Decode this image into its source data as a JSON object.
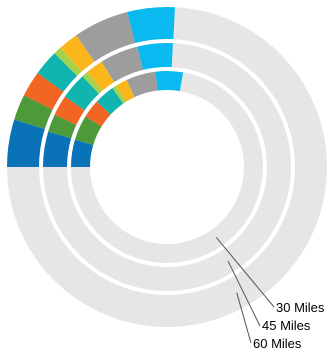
{
  "chart_data": {
    "type": "pie",
    "style": "multi-ring-donut",
    "start_angle_note": "segments run clockwise from 9 o'clock; the grey remainder fills the lower half",
    "colors": {
      "dark_blue": "#0a73b8",
      "green": "#4e9a3a",
      "orange": "#f06622",
      "teal": "#11b5b0",
      "light_green": "#a6d14b",
      "amber": "#fbb61c",
      "grey": "#9d9d9d",
      "sky_blue": "#0ab9ef",
      "remainder": "#e6e6e6"
    },
    "series": [
      {
        "name": "60 Miles",
        "slices": [
          {
            "color_key": "dark_blue",
            "value": 12
          },
          {
            "color_key": "green",
            "value": 6.5
          },
          {
            "color_key": "orange",
            "value": 6.5
          },
          {
            "color_key": "teal",
            "value": 6.5
          },
          {
            "color_key": "light_green",
            "value": 2
          },
          {
            "color_key": "amber",
            "value": 5
          },
          {
            "color_key": "grey",
            "value": 14
          },
          {
            "color_key": "sky_blue",
            "value": 12
          },
          {
            "color_key": "remainder",
            "value": 185.5
          }
        ]
      },
      {
        "name": "45 Miles",
        "slices": [
          {
            "color_key": "dark_blue",
            "value": 12
          },
          {
            "color_key": "green",
            "value": 6
          },
          {
            "color_key": "orange",
            "value": 7
          },
          {
            "color_key": "teal",
            "value": 9
          },
          {
            "color_key": "light_green",
            "value": 2
          },
          {
            "color_key": "amber",
            "value": 6
          },
          {
            "color_key": "grey",
            "value": 13
          },
          {
            "color_key": "sky_blue",
            "value": 12
          },
          {
            "color_key": "remainder",
            "value": 193
          }
        ]
      },
      {
        "name": "30 Miles",
        "slices": [
          {
            "color_key": "dark_blue",
            "value": 12
          },
          {
            "color_key": "green",
            "value": 11
          },
          {
            "color_key": "orange",
            "value": 8
          },
          {
            "color_key": "teal",
            "value": 9
          },
          {
            "color_key": "light_green",
            "value": 2
          },
          {
            "color_key": "amber",
            "value": 5
          },
          {
            "color_key": "grey",
            "value": 13
          },
          {
            "color_key": "sky_blue",
            "value": 12
          },
          {
            "color_key": "remainder",
            "value": 188
          }
        ]
      }
    ],
    "labels": [
      "30 Miles",
      "45 Miles",
      "60 Miles"
    ]
  }
}
